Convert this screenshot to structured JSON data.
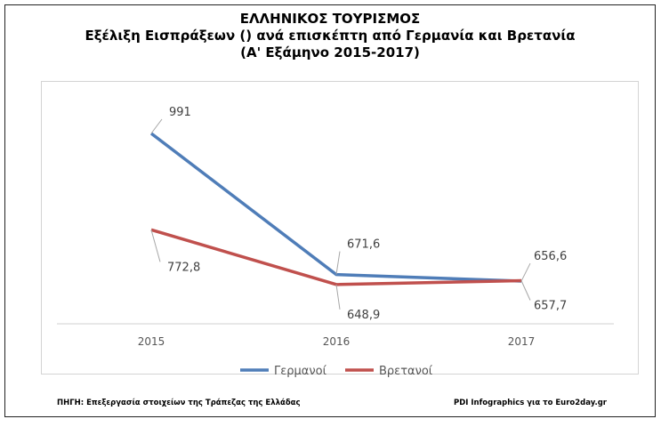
{
  "title": {
    "line1": "ΕΛΛΗΝΙΚΟΣ ΤΟΥΡΙΣΜΟΣ",
    "line2": "Εξέλιξη Εισπράξεων () ανά επισκέπτη από  Γερμανία και Βρετανία",
    "line3": "(Α' Εξάμηνο 2015-2017)"
  },
  "footer": {
    "source": "ΠΗΓΗ: Επεξεργασία στοιχείων της Τράπεζας της Ελλάδας",
    "credit": "PDI Infographics για το Euro2day.gr"
  },
  "chart_data": {
    "type": "line",
    "categories": [
      "2015",
      "2016",
      "2017"
    ],
    "series": [
      {
        "name": "Γερμανοί",
        "values": [
          991,
          671.6,
          656.6
        ],
        "labels": [
          "991",
          "671,6",
          "656,6"
        ],
        "color": "#4f7db8"
      },
      {
        "name": "Βρετανοί",
        "values": [
          772.8,
          648.9,
          657.7
        ],
        "labels": [
          "772,8",
          "648,9",
          "657,7"
        ],
        "color": "#c0504d"
      }
    ],
    "ylim": [
      0,
      1200
    ],
    "grid": false,
    "legend_position": "bottom"
  }
}
